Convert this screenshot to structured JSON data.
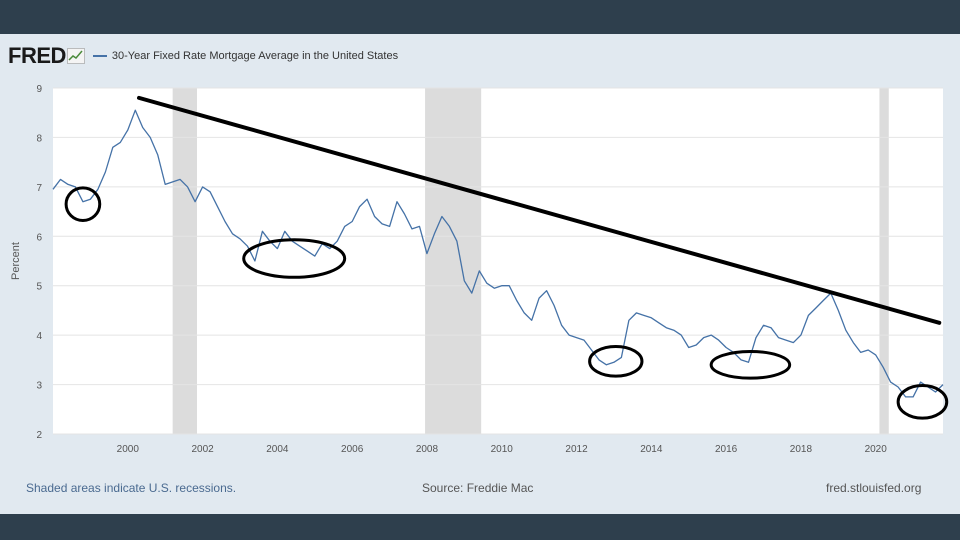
{
  "header": {
    "logo_text": "FRED",
    "series_title": "30-Year Fixed Rate Mortgage Average in the United States"
  },
  "footer": {
    "note": "Shaded areas indicate U.S. recessions.",
    "source": "Source: Freddie Mac",
    "site": "fred.stlouisfed.org"
  },
  "colors": {
    "series": "#4572a7",
    "recession": "#dcdcdc",
    "annotation": "#000000",
    "plot_bg": "#ffffff",
    "panel_bg": "#e1e9f0"
  },
  "chart_data": {
    "type": "line",
    "title": "30-Year Fixed Rate Mortgage Average in the United States",
    "xlabel": "",
    "ylabel": "Percent",
    "xlim": [
      1998.0,
      2021.8
    ],
    "ylim": [
      2,
      9
    ],
    "grid": true,
    "x_ticks": [
      "2000",
      "2002",
      "2004",
      "2006",
      "2008",
      "2010",
      "2012",
      "2014",
      "2016",
      "2018",
      "2020"
    ],
    "y_ticks": [
      "2",
      "3",
      "4",
      "5",
      "6",
      "7",
      "8",
      "9"
    ],
    "recessions": [
      [
        2001.2,
        2001.85
      ],
      [
        2007.95,
        2009.45
      ],
      [
        2020.1,
        2020.35
      ]
    ],
    "series": [
      {
        "x": [
          1998.0,
          1998.2,
          1998.4,
          1998.6,
          1998.8,
          1999.0,
          1999.2,
          1999.4,
          1999.6,
          1999.8,
          2000.0,
          2000.2,
          2000.4,
          2000.6,
          2000.8,
          2001.0,
          2001.2,
          2001.4,
          2001.6,
          2001.8,
          2002.0,
          2002.2,
          2002.4,
          2002.6,
          2002.8,
          2003.0,
          2003.2,
          2003.4,
          2003.6,
          2003.8,
          2004.0,
          2004.2,
          2004.4,
          2004.6,
          2004.8,
          2005.0,
          2005.2,
          2005.4,
          2005.6,
          2005.8,
          2006.0,
          2006.2,
          2006.4,
          2006.6,
          2006.8,
          2007.0,
          2007.2,
          2007.4,
          2007.6,
          2007.8,
          2008.0,
          2008.2,
          2008.4,
          2008.6,
          2008.8,
          2009.0,
          2009.2,
          2009.4,
          2009.6,
          2009.8,
          2010.0,
          2010.2,
          2010.4,
          2010.6,
          2010.8,
          2011.0,
          2011.2,
          2011.4,
          2011.6,
          2011.8,
          2012.0,
          2012.2,
          2012.4,
          2012.6,
          2012.8,
          2013.0,
          2013.2,
          2013.4,
          2013.6,
          2013.8,
          2014.0,
          2014.2,
          2014.4,
          2014.6,
          2014.8,
          2015.0,
          2015.2,
          2015.4,
          2015.6,
          2015.8,
          2016.0,
          2016.2,
          2016.4,
          2016.6,
          2016.8,
          2017.0,
          2017.2,
          2017.4,
          2017.6,
          2017.8,
          2018.0,
          2018.2,
          2018.4,
          2018.6,
          2018.8,
          2019.0,
          2019.2,
          2019.4,
          2019.6,
          2019.8,
          2020.0,
          2020.2,
          2020.4,
          2020.6,
          2020.8,
          2021.0,
          2021.2,
          2021.4,
          2021.6,
          2021.8
        ],
        "values": [
          6.95,
          7.15,
          7.05,
          7.0,
          6.7,
          6.75,
          6.95,
          7.3,
          7.8,
          7.9,
          8.15,
          8.55,
          8.2,
          8.0,
          7.65,
          7.05,
          7.1,
          7.15,
          7.0,
          6.7,
          7.0,
          6.9,
          6.6,
          6.3,
          6.05,
          5.95,
          5.8,
          5.5,
          6.1,
          5.9,
          5.75,
          6.1,
          5.9,
          5.8,
          5.7,
          5.6,
          5.85,
          5.75,
          5.9,
          6.2,
          6.3,
          6.6,
          6.75,
          6.4,
          6.25,
          6.2,
          6.7,
          6.45,
          6.15,
          6.2,
          5.65,
          6.05,
          6.4,
          6.2,
          5.9,
          5.1,
          4.85,
          5.3,
          5.05,
          4.95,
          5.0,
          5.0,
          4.7,
          4.45,
          4.3,
          4.75,
          4.9,
          4.6,
          4.2,
          4.0,
          3.95,
          3.9,
          3.7,
          3.5,
          3.4,
          3.45,
          3.55,
          4.3,
          4.45,
          4.4,
          4.35,
          4.25,
          4.15,
          4.1,
          4.0,
          3.75,
          3.8,
          3.95,
          4.0,
          3.9,
          3.75,
          3.65,
          3.5,
          3.45,
          3.95,
          4.2,
          4.15,
          3.95,
          3.9,
          3.85,
          4.0,
          4.4,
          4.55,
          4.7,
          4.85,
          4.5,
          4.1,
          3.85,
          3.65,
          3.7,
          3.6,
          3.35,
          3.05,
          2.95,
          2.75,
          2.75,
          3.05,
          2.95,
          2.85,
          3.0
        ]
      }
    ],
    "annotations": [
      {
        "type": "trendline",
        "from": [
          2000.3,
          8.8
        ],
        "to": [
          2021.7,
          4.25
        ]
      },
      {
        "type": "ellipse",
        "center": [
          1998.8,
          6.65
        ],
        "rx": 0.45,
        "ry": 0.33
      },
      {
        "type": "ellipse",
        "center": [
          2004.45,
          5.55
        ],
        "rx": 1.35,
        "ry": 0.38
      },
      {
        "type": "ellipse",
        "center": [
          2013.05,
          3.47
        ],
        "rx": 0.7,
        "ry": 0.3
      },
      {
        "type": "ellipse",
        "center": [
          2016.65,
          3.4
        ],
        "rx": 1.05,
        "ry": 0.27
      },
      {
        "type": "ellipse",
        "center": [
          2021.25,
          2.65
        ],
        "rx": 0.65,
        "ry": 0.33
      }
    ]
  }
}
